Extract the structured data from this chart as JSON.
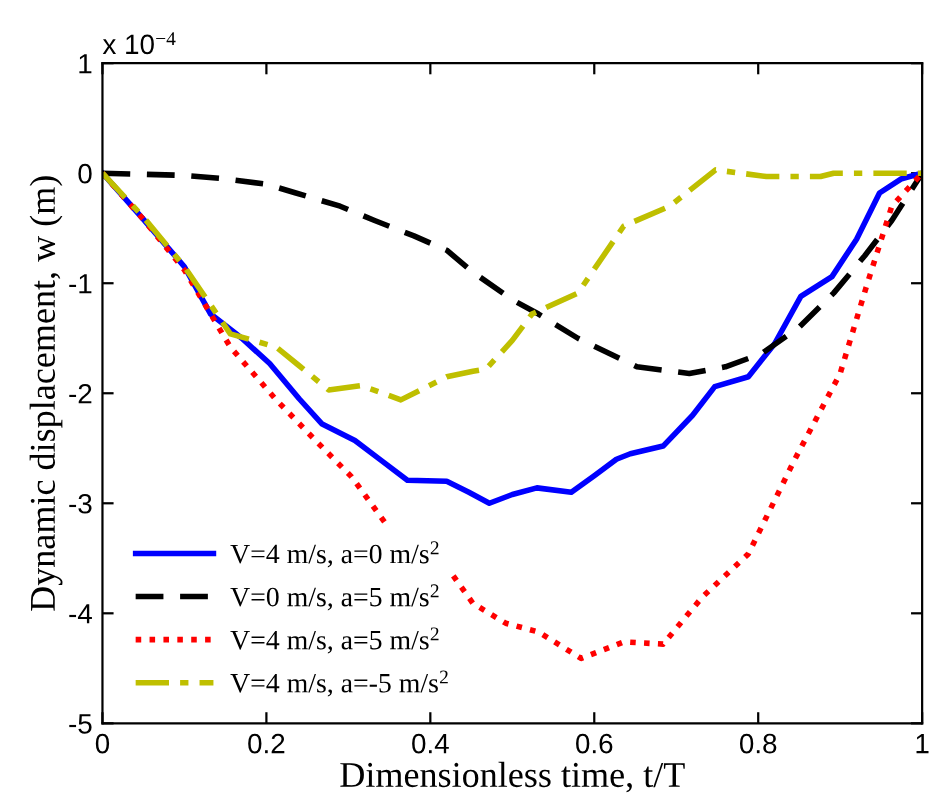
{
  "chart_data": {
    "type": "line",
    "xlabel": "Dimensionless time, t/T",
    "ylabel": "Dynamic displacement, w (m)",
    "annotations": [
      "x 10$^{−4}$"
    ],
    "xlim": [
      0,
      1
    ],
    "xticks": [
      0,
      0.2,
      0.4,
      0.6,
      0.8,
      1
    ],
    "ylim": [
      -5,
      1
    ],
    "yticks": [
      -5,
      -4,
      -3,
      -2,
      -1,
      0,
      1
    ],
    "grid": false,
    "legend": "bottom left",
    "series": [
      {
        "name": "V=4 m/s, a=0 m/s$^{2}$",
        "color": "#0000ff",
        "line_style": "solid",
        "x": [
          0,
          0.05,
          0.1,
          0.132,
          0.17,
          0.204,
          0.24,
          0.268,
          0.308,
          0.34,
          0.372,
          0.42,
          0.447,
          0.472,
          0.5,
          0.53,
          0.572,
          0.6,
          0.627,
          0.644,
          0.684,
          0.72,
          0.747,
          0.788,
          0.82,
          0.852,
          0.89,
          0.92,
          0.948,
          0.975,
          1
        ],
        "values": [
          0,
          -0.42,
          -0.85,
          -1.28,
          -1.5,
          -1.73,
          -2.05,
          -2.28,
          -2.43,
          -2.61,
          -2.79,
          -2.8,
          -2.9,
          -3.0,
          -2.92,
          -2.86,
          -2.9,
          -2.75,
          -2.6,
          -2.55,
          -2.48,
          -2.2,
          -1.94,
          -1.85,
          -1.55,
          -1.12,
          -0.94,
          -0.6,
          -0.18,
          -0.05,
          0
        ]
      },
      {
        "name": "V=0 m/s, a=5 m/s$^{2}$",
        "color": "#000000",
        "line_style": "dashed",
        "x": [
          0,
          0.1,
          0.148,
          0.2,
          0.236,
          0.29,
          0.332,
          0.38,
          0.42,
          0.452,
          0.5,
          0.532,
          0.58,
          0.652,
          0.716,
          0.76,
          0.804,
          0.85,
          0.892,
          0.93,
          0.963,
          1
        ],
        "values": [
          0,
          -0.02,
          -0.05,
          -0.1,
          -0.18,
          -0.3,
          -0.43,
          -0.57,
          -0.7,
          -0.9,
          -1.15,
          -1.28,
          -1.5,
          -1.76,
          -1.82,
          -1.76,
          -1.64,
          -1.4,
          -1.09,
          -0.75,
          -0.43,
          0
        ]
      },
      {
        "name": "V=4 m/s, a=5 m/s$^{2}$",
        "color": "#ff0000",
        "line_style": "dotted",
        "x": [
          0,
          0.05,
          0.1,
          0.156,
          0.212,
          0.26,
          0.304,
          0.348,
          0.39,
          0.428,
          0.452,
          0.492,
          0.532,
          0.584,
          0.636,
          0.684,
          0.732,
          0.788,
          0.844,
          0.9,
          0.932,
          0.963,
          1
        ],
        "values": [
          0,
          -0.42,
          -0.88,
          -1.58,
          -2.06,
          -2.43,
          -2.76,
          -3.21,
          null,
          -3.66,
          -3.91,
          -4.09,
          -4.17,
          -4.41,
          -4.26,
          -4.28,
          -3.85,
          -3.46,
          -2.61,
          -1.82,
          -1.03,
          -0.3,
          0
        ]
      },
      {
        "name": "V=4 m/s, a=-5 m/s$^{2}$",
        "color": "#bfbf00",
        "line_style": "dashdot",
        "x": [
          0,
          0.05,
          0.1,
          0.156,
          0.212,
          0.24,
          0.276,
          0.316,
          0.364,
          0.42,
          0.452,
          0.468,
          0.5,
          0.524,
          0.58,
          0.636,
          0.692,
          0.748,
          0.81,
          0.876,
          0.892,
          1
        ],
        "values": [
          0,
          -0.4,
          -0.85,
          -1.46,
          -1.58,
          -1.75,
          -1.97,
          -1.93,
          -2.06,
          -1.85,
          -1.8,
          -1.78,
          -1.52,
          -1.28,
          -1.09,
          -0.48,
          -0.3,
          0.03,
          -0.03,
          -0.03,
          0,
          0
        ]
      }
    ]
  }
}
